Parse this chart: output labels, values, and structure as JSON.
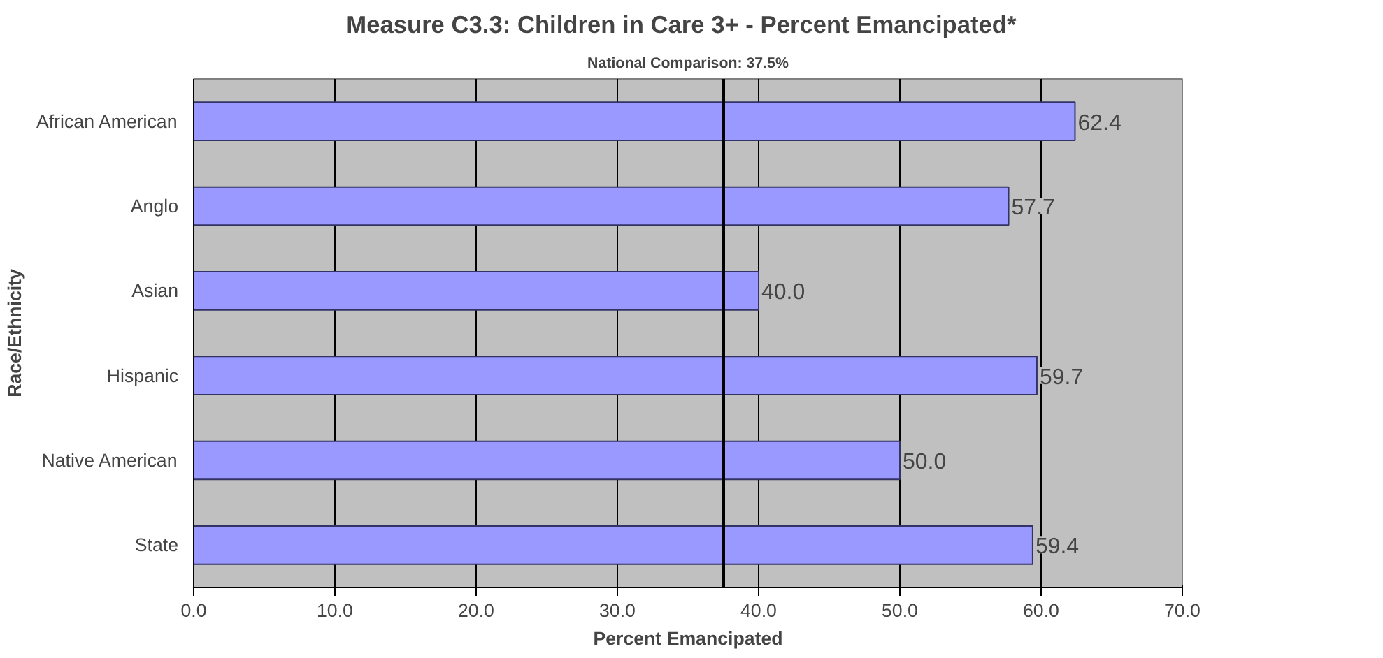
{
  "chart_data": {
    "type": "bar",
    "orientation": "horizontal",
    "title": "Measure C3.3: Children in Care 3+  -  Percent Emancipated*",
    "xlabel": "Percent Emancipated",
    "ylabel": "Race/Ethnicity",
    "categories": [
      "African American",
      "Anglo",
      "Asian",
      "Hispanic",
      "Native American",
      "State"
    ],
    "values": [
      62.4,
      57.7,
      40.0,
      59.7,
      50.0,
      59.4
    ],
    "value_labels": [
      "62.4",
      "57.7",
      "40.0",
      "59.7",
      "50.0",
      "59.4"
    ],
    "color": "#9999ff",
    "xlim": [
      0,
      70
    ],
    "xticks": [
      {
        "value": 0,
        "label": "0.0"
      },
      {
        "value": 10,
        "label": "10.0"
      },
      {
        "value": 20,
        "label": "20.0"
      },
      {
        "value": 30,
        "label": "30.0"
      },
      {
        "value": 40,
        "label": "40.0"
      },
      {
        "value": 50,
        "label": "50.0"
      },
      {
        "value": 60,
        "label": "60.0"
      },
      {
        "value": 70,
        "label": "70.0"
      }
    ],
    "grid": "x",
    "ref_lines": [
      {
        "axis": "x",
        "value": 37.5,
        "label": "National Comparison: 37.5%",
        "color": "#000000"
      }
    ]
  }
}
